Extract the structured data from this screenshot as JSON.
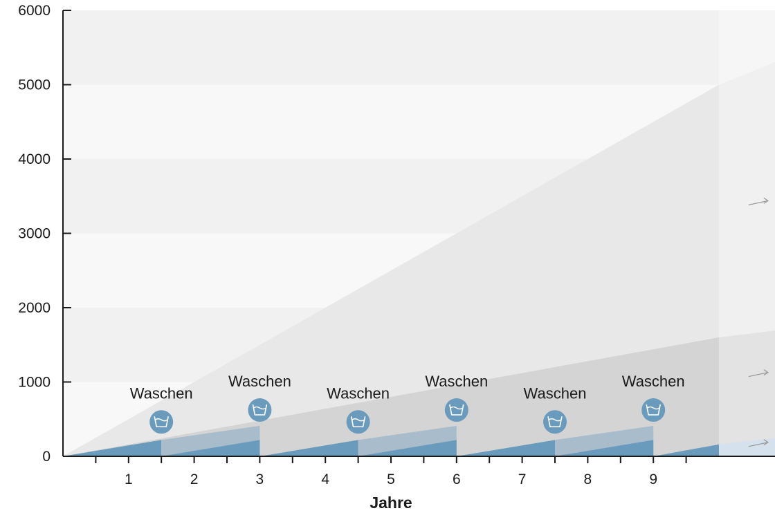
{
  "chart_data": {
    "type": "area",
    "title": "",
    "xlabel": "Jahre",
    "ylabel": "",
    "xlim": [
      0,
      10
    ],
    "ylim": [
      0,
      6000
    ],
    "x_ticks": [
      "1",
      "2",
      "3",
      "4",
      "5",
      "6",
      "7",
      "8",
      "9"
    ],
    "y_ticks": [
      "0",
      "1000",
      "2000",
      "3000",
      "4000",
      "5000",
      "6000"
    ],
    "series": [
      {
        "values_x": [
          0,
          10,
          11.4
        ],
        "values_y": [
          0,
          5000,
          5500
        ]
      },
      {
        "values_x": [
          0,
          10,
          11.4
        ],
        "values_y": [
          0,
          1600,
          1750
        ]
      },
      {
        "values_x": [
          0,
          10,
          11.4
        ],
        "values_y": [
          0,
          160,
          300
        ]
      }
    ],
    "cycle": {
      "start": [
        0,
        3,
        6
      ],
      "step_years": 1.5,
      "low_max": 220,
      "high_max": 410
    },
    "events": [
      {
        "label": "Waschen",
        "x": 1.5,
        "y": 500
      },
      {
        "label": "Waschen",
        "x": 3.0,
        "y": 660
      },
      {
        "label": "Waschen",
        "x": 4.5,
        "y": 500
      },
      {
        "label": "Waschen",
        "x": 6.0,
        "y": 660
      },
      {
        "label": "Waschen",
        "x": 7.5,
        "y": 500
      },
      {
        "label": "Waschen",
        "x": 9.0,
        "y": 660
      }
    ],
    "projection_arrows": [
      {
        "x": 10.6,
        "y": 3420
      },
      {
        "x": 10.6,
        "y": 1110
      },
      {
        "x": 10.6,
        "y": 170
      }
    ],
    "colors": {
      "plot_bg": "#f8f8f8",
      "band_alt": "#f1f1f1",
      "large_area": "#e8e8e8",
      "mid_area": "#d4d4d4",
      "small_area": "#6b9bbc",
      "washed_overlay": "#a8bccb",
      "projection_overlay": "#ffffff",
      "small_projection": "#d5e1ec",
      "icon_bg": "#6b9bbc",
      "arrow": "#9b9b9b"
    }
  }
}
